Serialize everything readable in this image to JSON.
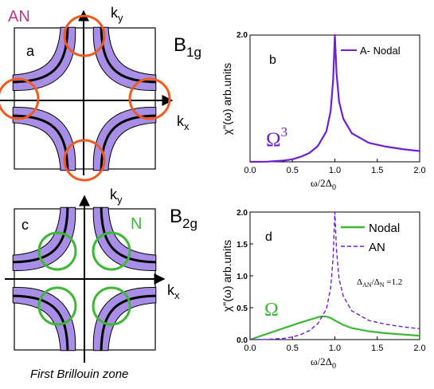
{
  "colors": {
    "purple": "#6b1fd6",
    "fermi_fill": "#a98ee8",
    "orange": "#f05a1e",
    "green": "#3cb834",
    "magenta": "#c6368a",
    "black": "#000000"
  },
  "panels": {
    "a": {
      "letter": "a",
      "tag": "AN",
      "kx": "k",
      "kx_sub": "x",
      "ky": "k",
      "ky_sub": "y",
      "symmetry": "B",
      "symmetry_sub": "1g"
    },
    "c": {
      "letter": "c",
      "tag": "N",
      "kx": "k",
      "kx_sub": "x",
      "ky": "k",
      "ky_sub": "y",
      "symmetry": "B",
      "symmetry_sub": "2g"
    }
  },
  "footer": {
    "caption": "First Brillouin zone"
  },
  "chart_data": [
    {
      "panel": "b",
      "type": "line",
      "letter": "b",
      "annotation": "Ω",
      "annotation_sup": "3",
      "xlabel": "ω/2Δ",
      "xlabel_sub": "0",
      "ylabel": "χ\"(ω)  arb.units",
      "xlim": [
        0.0,
        2.0
      ],
      "ylim": [
        0,
        2.0
      ],
      "xticks": [
        "0.0",
        "0.5",
        "1.0",
        "1.5",
        "2.0"
      ],
      "legend_position": "top-right",
      "series": [
        {
          "name": "A- Nodal",
          "style": "solid",
          "color": "#6b1fd6",
          "x": [
            0.0,
            0.2,
            0.4,
            0.5,
            0.6,
            0.7,
            0.8,
            0.9,
            0.95,
            0.98,
            1.0,
            1.02,
            1.05,
            1.1,
            1.2,
            1.4,
            1.6,
            1.8,
            2.0
          ],
          "y": [
            0.0,
            0.003,
            0.02,
            0.04,
            0.08,
            0.14,
            0.25,
            0.48,
            0.8,
            1.3,
            2.0,
            1.4,
            0.95,
            0.68,
            0.45,
            0.3,
            0.24,
            0.2,
            0.17
          ]
        }
      ]
    },
    {
      "panel": "d",
      "type": "line",
      "letter": "d",
      "annotation": "Ω",
      "ratio_label": "Δ",
      "ratio_sub1": "AN",
      "ratio_mid": "/Δ",
      "ratio_sub2": "N",
      "ratio_value": " =1.2",
      "xlabel": "ω/2Δ",
      "xlabel_sub": "0",
      "ylabel": "χ\"(ω)  arb.units",
      "xlim": [
        0.0,
        2.0
      ],
      "ylim": [
        0,
        2.0
      ],
      "xticks": [
        "0.0",
        "0.5",
        "1.0",
        "1.5",
        "2.0"
      ],
      "yticks": [
        "0.0",
        "0.5",
        "1.0",
        "1.5",
        "2.0"
      ],
      "legend_position": "top-right",
      "series": [
        {
          "name": "Nodal",
          "style": "solid",
          "color": "#3cb834",
          "x": [
            0.0,
            0.2,
            0.4,
            0.6,
            0.7,
            0.8,
            0.85,
            0.9,
            0.95,
            1.0,
            1.1,
            1.2,
            1.4,
            1.6,
            1.8,
            2.0
          ],
          "y": [
            0.0,
            0.09,
            0.18,
            0.27,
            0.31,
            0.35,
            0.365,
            0.36,
            0.34,
            0.3,
            0.23,
            0.18,
            0.13,
            0.1,
            0.08,
            0.06
          ]
        },
        {
          "name": "AN",
          "style": "dashed",
          "color": "#6b1fd6",
          "x": [
            0.0,
            0.2,
            0.4,
            0.5,
            0.6,
            0.7,
            0.8,
            0.9,
            0.95,
            0.98,
            1.0,
            1.02,
            1.05,
            1.1,
            1.2,
            1.4,
            1.6,
            1.8,
            2.0
          ],
          "y": [
            0.0,
            0.003,
            0.02,
            0.04,
            0.08,
            0.14,
            0.25,
            0.48,
            0.8,
            1.3,
            2.0,
            1.4,
            0.95,
            0.68,
            0.45,
            0.3,
            0.24,
            0.2,
            0.17
          ]
        }
      ]
    }
  ]
}
